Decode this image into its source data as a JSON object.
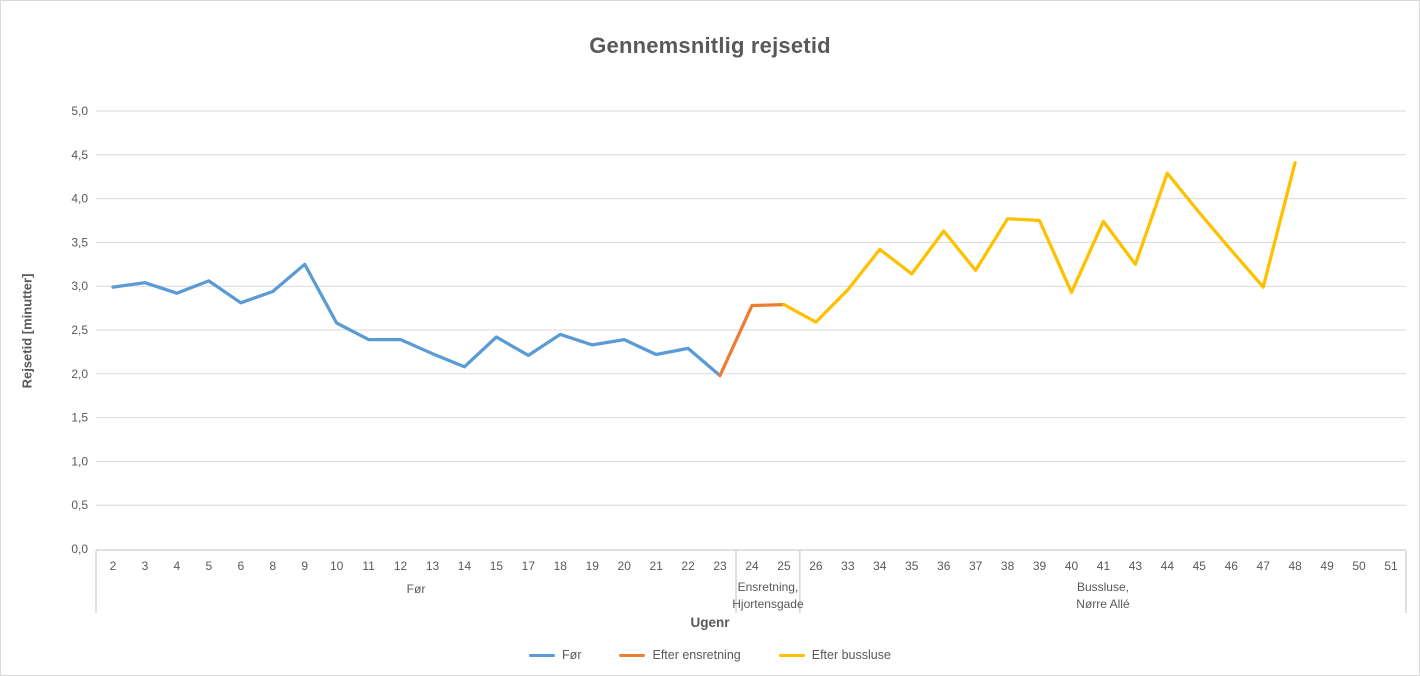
{
  "chart_data": {
    "type": "line",
    "title": "Gennemsnitlig rejsetid",
    "xlabel": "Ugenr",
    "ylabel": "Rejsetid [minutter]",
    "ylim": [
      0,
      5
    ],
    "ytick_step": 0.5,
    "ytick_labels": [
      "0,0",
      "0,5",
      "1,0",
      "1,5",
      "2,0",
      "2,5",
      "3,0",
      "3,5",
      "4,0",
      "4,5",
      "5,0"
    ],
    "grid": true,
    "legend_position": "bottom",
    "categories": [
      2,
      3,
      4,
      5,
      6,
      8,
      9,
      10,
      11,
      12,
      13,
      14,
      15,
      17,
      18,
      19,
      20,
      21,
      22,
      23,
      24,
      25,
      26,
      33,
      34,
      35,
      36,
      37,
      38,
      39,
      40,
      41,
      43,
      44,
      45,
      46,
      47,
      48,
      49,
      50,
      51
    ],
    "category_groups": [
      {
        "label_lines": [
          "Før"
        ],
        "from_week": 2,
        "to_week": 23
      },
      {
        "label_lines": [
          "Ensretning,",
          "Hjortensgade"
        ],
        "from_week": 24,
        "to_week": 25
      },
      {
        "label_lines": [
          "Bussluse,",
          "Nørre Allé"
        ],
        "from_week": 26,
        "to_week": 51
      }
    ],
    "series": [
      {
        "name": "Før",
        "color": "#5B9BD5",
        "x": [
          2,
          3,
          4,
          5,
          6,
          8,
          9,
          10,
          11,
          12,
          13,
          14,
          15,
          17,
          18,
          19,
          20,
          21,
          22,
          23
        ],
        "values": [
          2.99,
          3.04,
          2.92,
          3.06,
          2.81,
          2.94,
          3.25,
          2.58,
          2.39,
          2.39,
          2.23,
          2.08,
          2.42,
          2.21,
          2.45,
          2.33,
          2.39,
          2.22,
          2.29,
          1.98
        ]
      },
      {
        "name": "Efter ensretning",
        "color": "#ED7D31",
        "x": [
          23,
          24,
          25
        ],
        "values": [
          1.98,
          2.78,
          2.79
        ]
      },
      {
        "name": "Efter bussluse",
        "color": "#FFC000",
        "x": [
          25,
          26,
          33,
          34,
          35,
          36,
          37,
          38,
          39,
          40,
          41,
          43,
          44,
          45,
          46,
          47,
          48
        ],
        "values": [
          2.79,
          2.59,
          2.96,
          3.42,
          3.14,
          3.63,
          3.18,
          3.77,
          3.75,
          2.93,
          3.74,
          3.25,
          4.29,
          3.84,
          3.41,
          2.99,
          4.41
        ]
      }
    ],
    "colors": {
      "text": "#595959",
      "gridline": "#d9d9d9",
      "axis_line": "#bfbfbf"
    }
  }
}
